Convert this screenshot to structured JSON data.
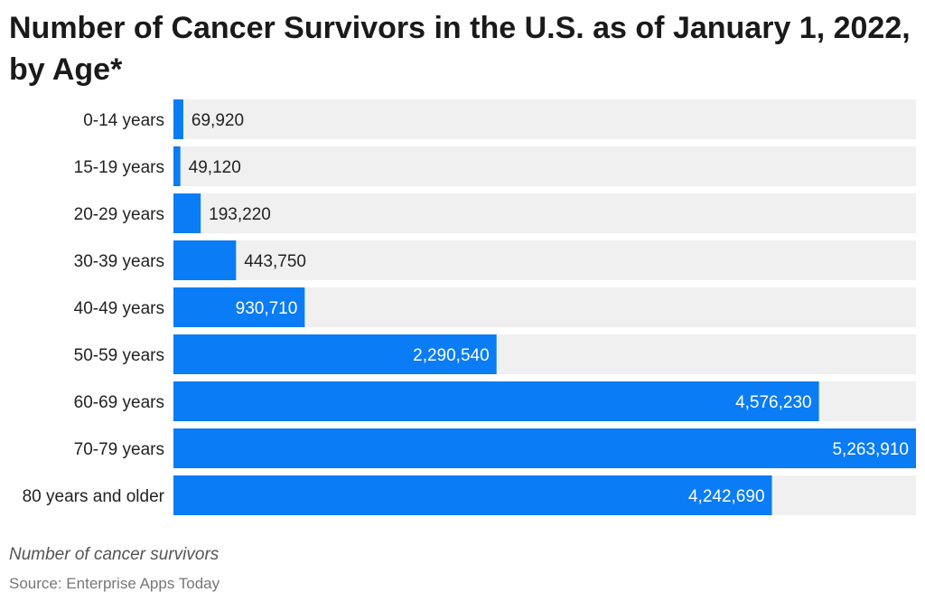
{
  "chart_data": {
    "type": "bar",
    "orientation": "horizontal",
    "title": "Number of Cancer Survivors in the U.S. as of January 1, 2022, by Age*",
    "categories": [
      "0-14 years",
      "15-19 years",
      "20-29 years",
      "30-39 years",
      "40-49 years",
      "50-59 years",
      "60-69 years",
      "70-79 years",
      "80 years and older"
    ],
    "values": [
      69920,
      49120,
      193220,
      443750,
      930710,
      2290540,
      4576230,
      5263910,
      4242690
    ],
    "value_labels": [
      "69,920",
      "49,120",
      "193,220",
      "443,750",
      "930,710",
      "2,290,540",
      "4,576,230",
      "5,263,910",
      "4,242,690"
    ],
    "xlim": [
      0,
      5263910
    ],
    "xlabel": "Number of cancer survivors",
    "ylabel": "",
    "grid": false,
    "colors": {
      "bar": "#0a7cf5",
      "track": "#f0f0f0",
      "label_inside": "#ffffff",
      "label_outside": "#222222"
    }
  },
  "footer": {
    "measure": "Number of cancer survivors",
    "source": "Source: Enterprise Apps Today"
  }
}
